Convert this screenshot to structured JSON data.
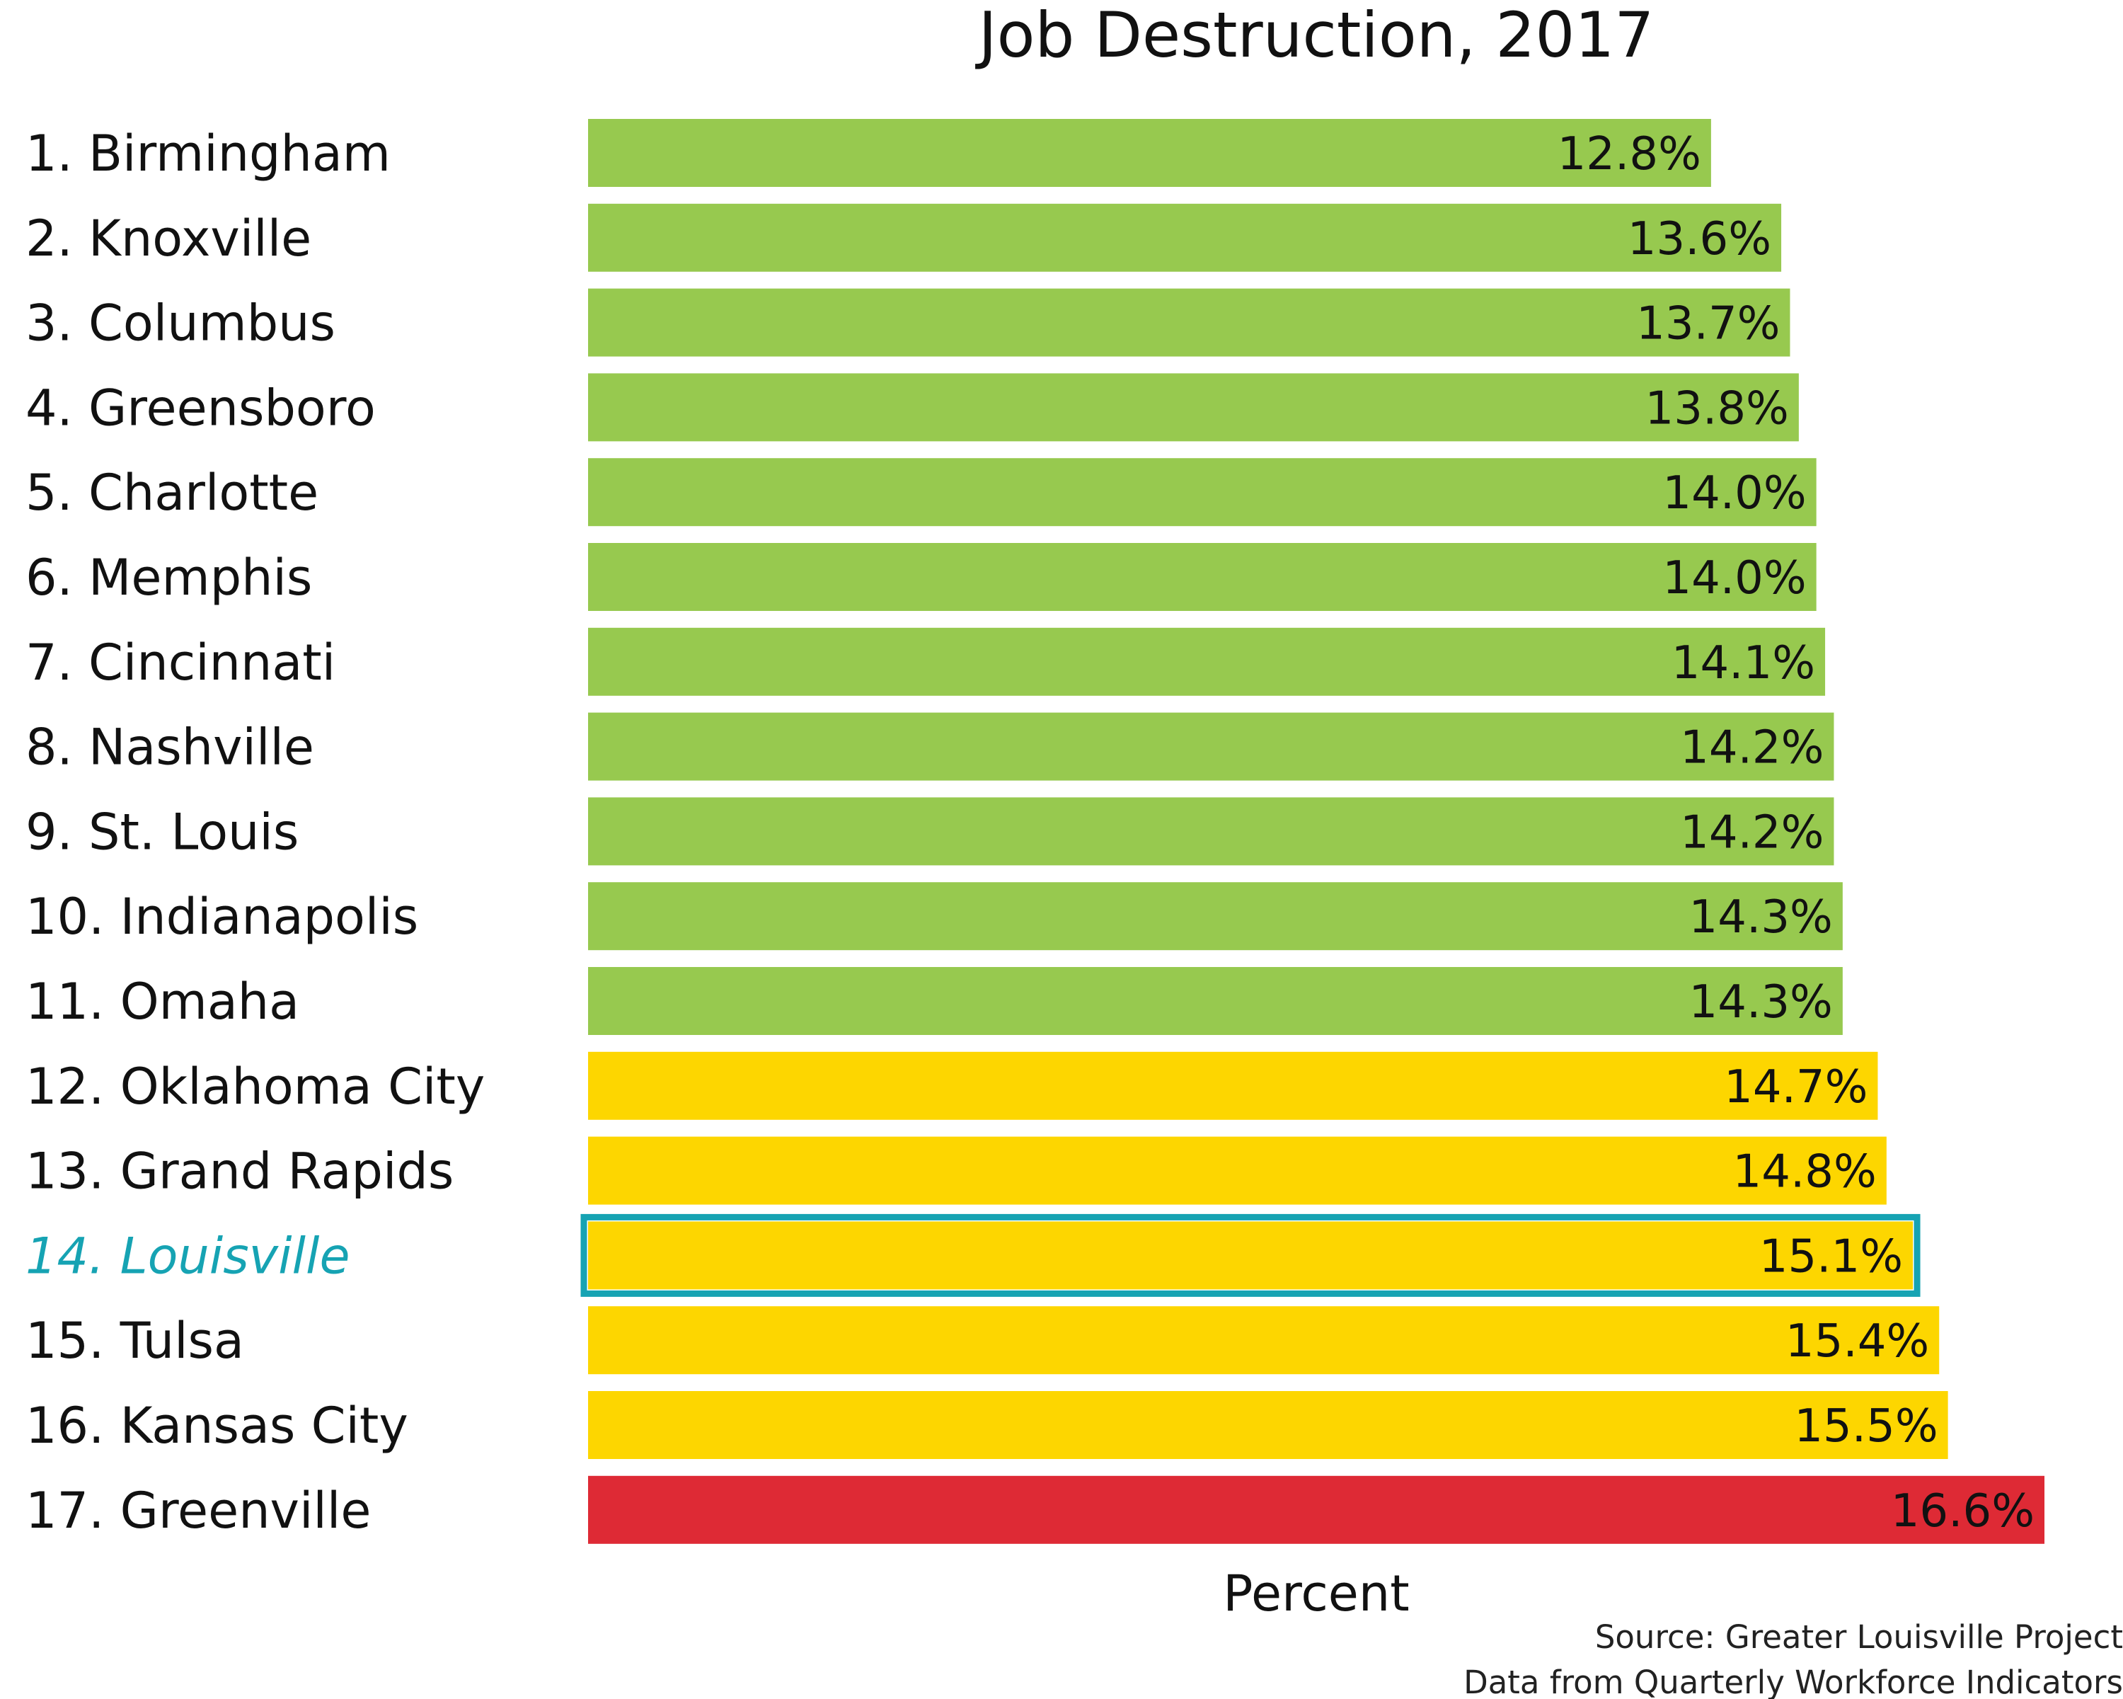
{
  "chart_data": {
    "type": "bar",
    "orientation": "horizontal",
    "title": "Job Destruction, 2017",
    "xlabel": "Percent",
    "ylabel": "",
    "xlim": [
      0,
      16.6
    ],
    "grid": false,
    "legend": "none",
    "categories": [
      "1. Birmingham",
      "2. Knoxville",
      "3. Columbus",
      "4. Greensboro",
      "5. Charlotte",
      "6. Memphis",
      "7. Cincinnati",
      "8. Nashville",
      "9. St. Louis",
      "10. Indianapolis",
      "11. Omaha",
      "12. Oklahoma City",
      "13. Grand Rapids",
      "14. Louisville",
      "15. Tulsa",
      "16. Kansas City",
      "17. Greenville"
    ],
    "values": [
      12.8,
      13.6,
      13.7,
      13.8,
      14.0,
      14.0,
      14.1,
      14.2,
      14.2,
      14.3,
      14.3,
      14.7,
      14.8,
      15.1,
      15.4,
      15.5,
      16.6
    ],
    "value_labels": [
      "12.8%",
      "13.6%",
      "13.7%",
      "13.8%",
      "14.0%",
      "14.0%",
      "14.1%",
      "14.2%",
      "14.2%",
      "14.3%",
      "14.3%",
      "14.7%",
      "14.8%",
      "15.1%",
      "15.4%",
      "15.5%",
      "16.6%"
    ],
    "tiers": [
      "green",
      "green",
      "green",
      "green",
      "green",
      "green",
      "green",
      "green",
      "green",
      "green",
      "green",
      "yellow",
      "yellow",
      "yellow",
      "yellow",
      "yellow",
      "red"
    ],
    "highlight_index": 13,
    "source": [
      "Source: Greater Louisville Project",
      "Data from Quarterly Workforce Indicators"
    ]
  },
  "colors": {
    "green": "#97c94f",
    "yellow": "#fdd600",
    "red": "#de2a35",
    "highlight": "#16a3b3",
    "text": "#111111"
  }
}
